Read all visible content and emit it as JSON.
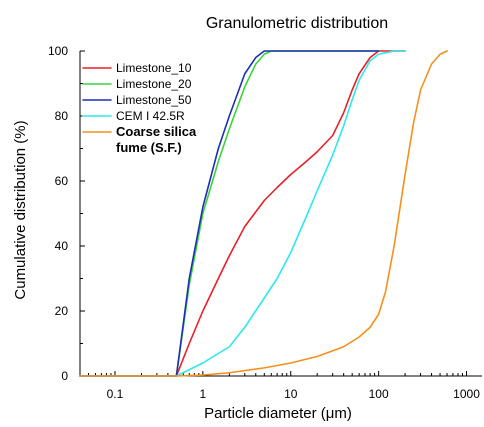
{
  "chart_data": {
    "type": "line",
    "title": "Granulometric distribution",
    "xlabel": "Particle diameter (μm)",
    "ylabel": "Cumulative distribution (%)",
    "x_scale": "log",
    "xlim": [
      0.04,
      1500
    ],
    "ylim": [
      0,
      100
    ],
    "x_ticks": [
      {
        "value": 0.1,
        "label": "0.1"
      },
      {
        "value": 1,
        "label": "1"
      },
      {
        "value": 10,
        "label": "10"
      },
      {
        "value": 100,
        "label": "100"
      },
      {
        "value": 1000,
        "label": "1000"
      }
    ],
    "y_ticks": [
      {
        "value": 0,
        "label": "0"
      },
      {
        "value": 20,
        "label": "20"
      },
      {
        "value": 40,
        "label": "40"
      },
      {
        "value": 60,
        "label": "60"
      },
      {
        "value": 80,
        "label": "80"
      },
      {
        "value": 100,
        "label": "100"
      }
    ],
    "grid": false,
    "legend_position": "top-left",
    "series": [
      {
        "name": "Limestone_10",
        "legend_lines": [
          "Limestone_10"
        ],
        "legend_bold": false,
        "color": "#e8202a",
        "x": [
          0.04,
          0.5,
          0.7,
          1,
          1.5,
          2,
          3,
          5,
          7,
          10,
          15,
          20,
          30,
          40,
          50,
          60,
          80,
          100,
          130,
          150,
          200
        ],
        "y": [
          0,
          0,
          10,
          20,
          30,
          37,
          46,
          54,
          58,
          62,
          66,
          69,
          74,
          81,
          88,
          93,
          98,
          100,
          100,
          100,
          100
        ]
      },
      {
        "name": "Limestone_20",
        "legend_lines": [
          "Limestone_20"
        ],
        "legend_bold": false,
        "color": "#3dd23d",
        "x": [
          0.04,
          0.5,
          0.7,
          1,
          1.5,
          2,
          3,
          4,
          5,
          6,
          7,
          10,
          20,
          50,
          100
        ],
        "y": [
          0,
          0,
          28,
          50,
          66,
          76,
          89,
          96,
          99,
          100,
          100,
          100,
          100,
          100,
          100
        ]
      },
      {
        "name": "Limestone_50",
        "legend_lines": [
          "Limestone_50"
        ],
        "legend_bold": false,
        "color": "#1e2fb5",
        "x": [
          0.04,
          0.5,
          0.7,
          1,
          1.5,
          2,
          3,
          4,
          5,
          6,
          10,
          20,
          50,
          100
        ],
        "y": [
          0,
          0,
          30,
          52,
          70,
          80,
          93,
          98,
          100,
          100,
          100,
          100,
          100,
          100
        ]
      },
      {
        "name": "CEM I 42.5R",
        "legend_lines": [
          "CEM I 42.5R"
        ],
        "legend_bold": false,
        "color": "#2ee8ee",
        "x": [
          0.04,
          0.5,
          1,
          2,
          3,
          5,
          7,
          10,
          15,
          20,
          30,
          40,
          50,
          60,
          80,
          100,
          150,
          200
        ],
        "y": [
          0,
          0,
          4,
          9,
          15,
          24,
          30,
          38,
          49,
          57,
          68,
          77,
          85,
          91,
          97,
          99,
          100,
          100
        ]
      },
      {
        "name": "Coarse silica fume (S.F.)",
        "legend_lines": [
          "Coarse silica",
          "fume (S.F.)"
        ],
        "legend_bold": true,
        "color": "#f4901e",
        "x": [
          0.04,
          0.5,
          1,
          2,
          5,
          10,
          20,
          40,
          60,
          80,
          100,
          120,
          150,
          200,
          250,
          300,
          400,
          500,
          600
        ],
        "y": [
          0,
          0,
          0.3,
          1,
          2.5,
          4,
          6,
          9,
          12,
          15,
          19,
          26,
          40,
          62,
          78,
          88,
          96,
          99,
          100
        ]
      }
    ]
  }
}
